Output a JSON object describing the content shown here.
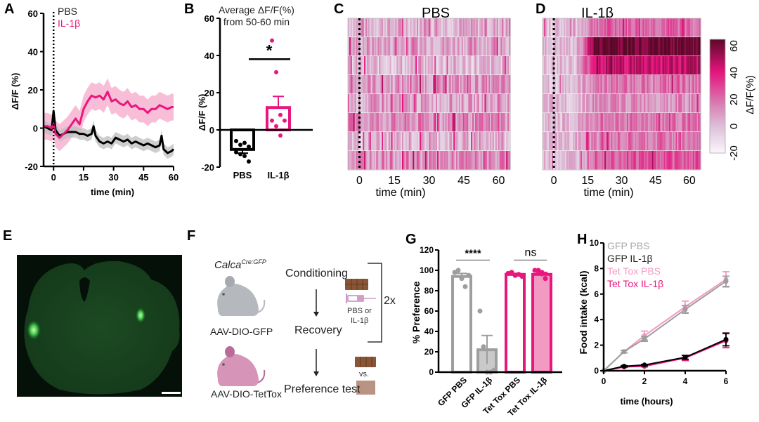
{
  "panels": {
    "A": "A",
    "B": "B",
    "C": "C",
    "D": "D",
    "E": "E",
    "F": "F",
    "G": "G",
    "H": "H"
  },
  "colors": {
    "pbs": "#000000",
    "il1b": "#e8177d",
    "il1b_band": "#f7a8c9",
    "grey": "#9e9e9e",
    "tettox_pbs": "#f39ac3",
    "tettox_il1b": "#e8177d",
    "heat_low": "#f6eef5",
    "heat_mid": "#d98fbb",
    "heat_high": "#e5117a",
    "heat_max": "#5e0a2c",
    "gfp": "#1e7a2e"
  },
  "chart_data": [
    {
      "id": "A",
      "type": "line",
      "xlabel": "time (min)",
      "ylabel": "ΔF/F (%)",
      "xlim": [
        -5,
        60
      ],
      "ylim": [
        -20,
        60
      ],
      "xticks": [
        "0",
        "15",
        "30",
        "45",
        "60"
      ],
      "yticks": [
        "-20",
        "0",
        "20",
        "40",
        "60"
      ],
      "legend": [
        "PBS",
        "IL-1β"
      ],
      "legend_position": "top-left",
      "annotation": "dotted line at t=0",
      "series": [
        {
          "name": "PBS",
          "x": [
            -5,
            -3,
            -1,
            0,
            1,
            3,
            5,
            7,
            9,
            11,
            13,
            15,
            17,
            19,
            20,
            21,
            23,
            25,
            27,
            29,
            31,
            33,
            35,
            37,
            39,
            41,
            43,
            45,
            47,
            49,
            51,
            53,
            54,
            55,
            57,
            59,
            60
          ],
          "y": [
            1,
            0,
            -1,
            9,
            -1,
            -4,
            -3,
            -2,
            -2,
            -2,
            -3,
            -3,
            -4,
            -3,
            1,
            -4,
            -7,
            -8,
            -7,
            -8,
            -5,
            -6,
            -7,
            -6,
            -8,
            -7,
            -8,
            -9,
            -8,
            -9,
            -10,
            -9,
            -4,
            -11,
            -13,
            -12,
            -11
          ],
          "error": 3
        },
        {
          "name": "IL-1β",
          "x": [
            -5,
            -3,
            -1,
            0,
            1,
            3,
            5,
            7,
            9,
            11,
            13,
            15,
            17,
            19,
            21,
            23,
            25,
            27,
            29,
            31,
            33,
            35,
            37,
            39,
            41,
            43,
            45,
            47,
            49,
            51,
            53,
            55,
            57,
            59,
            60
          ],
          "y": [
            1,
            1,
            0,
            2,
            -3,
            -5,
            -3,
            -1,
            2,
            5,
            2,
            10,
            14,
            17,
            16,
            17,
            15,
            19,
            14,
            15,
            13,
            12,
            14,
            11,
            12,
            10,
            10,
            8,
            10,
            10,
            12,
            11,
            10,
            11,
            11
          ],
          "error": 7
        }
      ]
    },
    {
      "id": "B",
      "type": "bar",
      "title": "Average ΔF/F(%) from 50-60 min",
      "ylabel": "ΔF/F (%)",
      "ylim": [
        -20,
        60
      ],
      "yticks": [
        "-20",
        "0",
        "20",
        "40",
        "60"
      ],
      "categories": [
        "PBS",
        "IL-1β"
      ],
      "values": [
        -10.5,
        12
      ],
      "sem": [
        2,
        6
      ],
      "points": [
        [
          -6,
          -8,
          -7,
          -9,
          -12,
          -13,
          -14,
          -17
        ],
        [
          48,
          31,
          8,
          5,
          5,
          2,
          -3
        ]
      ],
      "significance": "*"
    },
    {
      "id": "C",
      "type": "heatmap",
      "title": "PBS",
      "xlabel": "time (min)",
      "xticks": [
        "0",
        "15",
        "30",
        "45",
        "60"
      ],
      "rows": 8,
      "row_mean_values": [
        4,
        8,
        0,
        10,
        6,
        12,
        2,
        12
      ]
    },
    {
      "id": "D",
      "type": "heatmap",
      "title": "IL-1β",
      "xlabel": "time (min)",
      "xticks": [
        "0",
        "15",
        "30",
        "45",
        "60"
      ],
      "rows": 8,
      "row_post_values": [
        22,
        62,
        45,
        18,
        12,
        18,
        16,
        26
      ],
      "colorbar": {
        "label": "ΔF/F(%)",
        "ticks": [
          "-20",
          "0",
          "20",
          "40",
          "60"
        ],
        "range": [
          -20,
          65
        ]
      }
    },
    {
      "id": "G",
      "type": "bar",
      "ylabel": "% Preference",
      "ylim": [
        0,
        120
      ],
      "yticks": [
        "0",
        "20",
        "40",
        "60",
        "80",
        "100",
        "120"
      ],
      "categories": [
        "GFP PBS",
        "GFP IL-1β",
        "Tet Tox PBS",
        "Tet Tox IL-1β"
      ],
      "values": [
        94,
        22,
        96,
        96
      ],
      "sem": [
        3,
        14,
        1,
        2
      ],
      "points": [
        [
          98,
          100,
          92,
          84,
          95
        ],
        [
          60,
          25,
          0,
          0,
          2
        ],
        [
          97,
          98,
          95,
          96,
          94
        ],
        [
          100,
          100,
          98,
          92
        ]
      ],
      "significance": [
        {
          "between": [
            "GFP PBS",
            "GFP IL-1β"
          ],
          "label": "****"
        },
        {
          "between": [
            "Tet Tox PBS",
            "Tet Tox IL-1β"
          ],
          "label": "ns"
        }
      ]
    },
    {
      "id": "H",
      "type": "line",
      "xlabel": "time (hours)",
      "ylabel": "Food intake (kcal)",
      "xlim": [
        0,
        6
      ],
      "ylim": [
        0,
        10
      ],
      "xticks": [
        "0",
        "2",
        "4",
        "6"
      ],
      "yticks": [
        "0",
        "2",
        "4",
        "6",
        "8",
        "10"
      ],
      "x": [
        0,
        1,
        2,
        4,
        6
      ],
      "legend_position": "top-left",
      "series": [
        {
          "name": "GFP PBS",
          "values": [
            0,
            1.5,
            2.5,
            4.8,
            7.0
          ],
          "err": [
            0,
            0.1,
            0.2,
            0.3,
            0.4
          ]
        },
        {
          "name": "GFP IL-1β",
          "values": [
            0,
            0.35,
            0.45,
            1.05,
            2.45
          ],
          "err": [
            0,
            0.05,
            0.05,
            0.15,
            0.5
          ]
        },
        {
          "name": "Tet Tox PBS",
          "values": [
            0,
            1.5,
            2.75,
            5.0,
            7.15
          ],
          "err": [
            0,
            0.1,
            0.35,
            0.45,
            0.6
          ]
        },
        {
          "name": "Tet Tox IL-1β",
          "values": [
            0,
            0.3,
            0.35,
            1.0,
            2.35
          ],
          "err": [
            0,
            0.05,
            0.05,
            0.2,
            0.55
          ]
        }
      ]
    }
  ],
  "panel_E": {
    "description": "green fluorescent brain section image",
    "scale_bar": true
  },
  "panel_F": {
    "genotype": "Calca",
    "genotype_superscript": "Cre:GFP",
    "mouse1_label": "AAV-DIO-GFP",
    "mouse2_label": "AAV-DIO-TetTox",
    "step1": "Conditioning",
    "step2": "Recovery",
    "step3": "Preference test",
    "injection_label_1": "PBS or",
    "injection_label_2": "IL-1β",
    "repeat": "2x",
    "vs": "vs."
  }
}
